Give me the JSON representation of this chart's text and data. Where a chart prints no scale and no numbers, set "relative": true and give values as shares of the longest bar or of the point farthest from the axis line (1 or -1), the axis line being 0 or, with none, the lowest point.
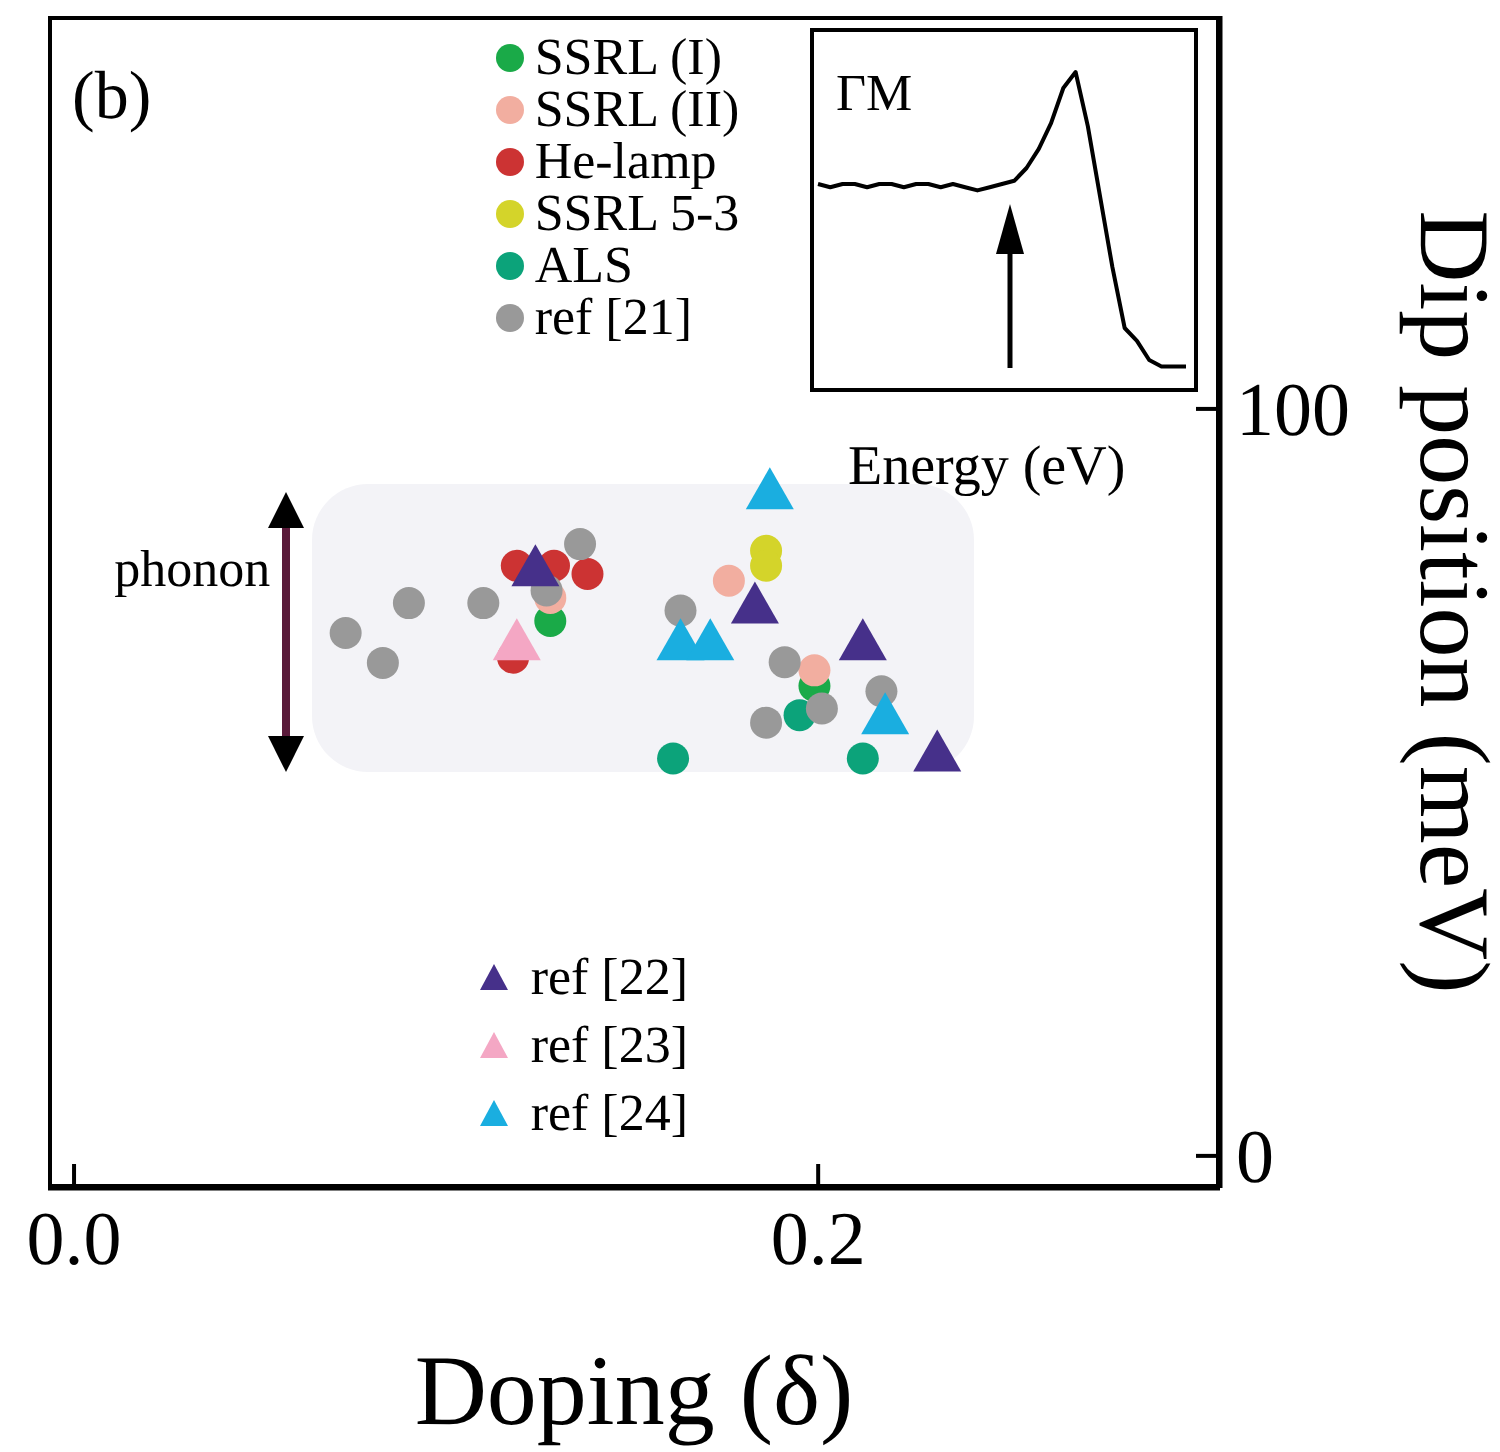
{
  "chart_data": [
    {
      "type": "scatter",
      "xlabel": "Doping (δ)",
      "ylabel": "Dip position (meV)",
      "xlim": [
        -0.007,
        0.308
      ],
      "ylim": [
        -4.3,
        152.6
      ],
      "xticks": [
        {
          "value": 0,
          "label": "0.0"
        },
        {
          "value": 0.2,
          "label": "0.2"
        }
      ],
      "yticks": [
        0,
        100
      ],
      "legend": "top left",
      "grid": false,
      "annotations": [
        "(b)",
        "phonon"
      ],
      "series": [
        {
          "name": "SSRL (I)",
          "color": "#1aaa48",
          "marker": "circle",
          "x": [
            0.128,
            0.199
          ],
          "values": [
            71.6,
            62.9
          ]
        },
        {
          "name": "SSRL (II)",
          "color": "#f2aea0",
          "marker": "circle",
          "x": [
            0.128,
            0.176,
            0.199
          ],
          "values": [
            74.7,
            77.0,
            65.0
          ]
        },
        {
          "name": "He-lamp",
          "color": "#cc3333",
          "marker": "circle",
          "x": [
            0.119,
            0.129,
            0.138,
            0.118
          ],
          "values": [
            79.0,
            79.0,
            77.9,
            66.7
          ]
        },
        {
          "name": "SSRL 5-3",
          "color": "#d4d42a",
          "marker": "circle",
          "x": [
            0.186,
            0.186
          ],
          "values": [
            81.0,
            79.0
          ]
        },
        {
          "name": "ALS",
          "color": "#0ca37a",
          "marker": "circle",
          "x": [
            0.161,
            0.195,
            0.212
          ],
          "values": [
            53.2,
            59.0,
            53.2
          ]
        },
        {
          "name": "ref [21]",
          "color": "#999999",
          "marker": "circle",
          "x": [
            0.073,
            0.083,
            0.09,
            0.11,
            0.127,
            0.136,
            0.163,
            0.191,
            0.186,
            0.201,
            0.217
          ],
          "values": [
            70.0,
            66.0,
            74.0,
            74.0,
            75.7,
            81.9,
            73.0,
            66.1,
            58.0,
            59.9,
            62.2
          ]
        },
        {
          "name": "ref [22]",
          "color": "#46308a",
          "marker": "triangle",
          "x": [
            0.124,
            0.183,
            0.212,
            0.232
          ],
          "values": [
            78.4,
            73.4,
            68.5,
            53.6
          ]
        },
        {
          "name": "ref [23]",
          "color": "#f4a7c4",
          "marker": "triangle",
          "x": [
            0.119
          ],
          "values": [
            68.5
          ]
        },
        {
          "name": "ref [24]",
          "color": "#1aaee0",
          "marker": "triangle",
          "x": [
            0.187,
            0.163,
            0.171,
            0.218
          ],
          "values": [
            88.7,
            68.5,
            68.5,
            58.6
          ]
        }
      ]
    },
    {
      "type": "line",
      "relative": true,
      "xlabel": "Energy (eV)",
      "annotations": [
        "ΓM"
      ],
      "categories": [
        null,
        null,
        null,
        null,
        null,
        null,
        null,
        null,
        null,
        null,
        null,
        null,
        null,
        null,
        null,
        null,
        null,
        null,
        null,
        null,
        null,
        null,
        null,
        null,
        null,
        null,
        null,
        null,
        null,
        null,
        null
      ],
      "series": [
        {
          "color": "#000000",
          "values": [
            0.65,
            0.64,
            0.65,
            0.65,
            0.64,
            0.65,
            0.65,
            0.64,
            0.65,
            0.65,
            0.64,
            0.65,
            0.64,
            0.63,
            0.64,
            0.65,
            0.66,
            0.7,
            0.76,
            0.84,
            0.95,
            1.0,
            0.83,
            0.61,
            0.39,
            0.2,
            0.16,
            0.1,
            0.08,
            0.08,
            0.08
          ]
        }
      ]
    }
  ]
}
